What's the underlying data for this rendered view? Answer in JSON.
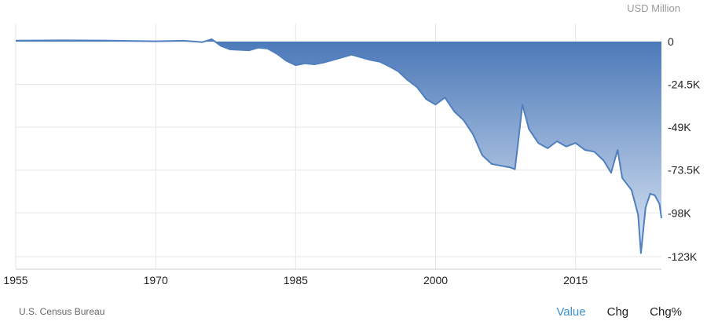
{
  "header": {
    "unit": "USD Million"
  },
  "footer": {
    "source": "U.S. Census Bureau",
    "tabs": [
      {
        "label": "Value",
        "active": true
      },
      {
        "label": "Chg",
        "active": false
      },
      {
        "label": "Chg%",
        "active": false
      }
    ]
  },
  "colors": {
    "line": "#4f7fbf",
    "fill_top": "#4a78b8",
    "fill_bottom": "#dce6f4",
    "grid": "#e6e6e6"
  },
  "chart_data": {
    "type": "area",
    "title": "",
    "xlabel": "",
    "ylabel": "",
    "grid": true,
    "xlim": [
      1955,
      2024.2
    ],
    "ylim": [
      -123000,
      0
    ],
    "x_ticks": [
      1955,
      1970,
      1985,
      2000,
      2015
    ],
    "x_tick_labels": [
      "1955",
      "1970",
      "1985",
      "2000",
      "2015"
    ],
    "y_ticks": [
      0,
      -24500,
      -49000,
      -73500,
      -98000,
      -123000
    ],
    "y_tick_labels": [
      "0",
      "-24.5K",
      "-49K",
      "-73.5K",
      "-98K",
      "-123K"
    ],
    "x": [
      1955,
      1960,
      1965,
      1970,
      1973,
      1975,
      1976,
      1977,
      1978,
      1980,
      1981,
      1982,
      1983,
      1984,
      1985,
      1986,
      1987,
      1988,
      1989,
      1990,
      1991,
      1992,
      1993,
      1994,
      1995,
      1996,
      1997,
      1998,
      1999,
      2000,
      2001,
      2002,
      2003,
      2004,
      2005,
      2006,
      2007,
      2008,
      2008.5,
      2008.9,
      2009.3,
      2010,
      2011,
      2012,
      2013,
      2014,
      2015,
      2016,
      2017,
      2018,
      2018.8,
      2019.5,
      2020,
      2021,
      2021.7,
      2022,
      2022.5,
      2023,
      2023.5,
      2024,
      2024.2
    ],
    "y": [
      600,
      700,
      600,
      200,
      500,
      -300,
      1400,
      -2500,
      -4500,
      -5000,
      -3500,
      -4000,
      -7000,
      -11000,
      -13500,
      -12500,
      -13000,
      -12000,
      -10500,
      -9000,
      -7500,
      -9000,
      -10500,
      -11500,
      -14000,
      -17000,
      -22000,
      -26000,
      -33000,
      -36000,
      -32000,
      -40000,
      -45000,
      -53000,
      -65000,
      -70000,
      -71000,
      -72000,
      -73000,
      -55000,
      -36000,
      -50000,
      -58000,
      -61000,
      -57000,
      -60000,
      -58000,
      -62000,
      -63000,
      -68000,
      -75000,
      -62000,
      -78000,
      -85000,
      -99000,
      -121000,
      -95000,
      -87000,
      -88000,
      -93000,
      -101000
    ],
    "series": [
      {
        "values_from": "y"
      }
    ]
  }
}
